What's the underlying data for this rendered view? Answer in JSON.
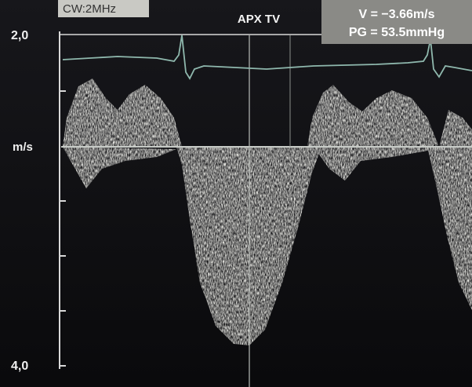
{
  "header": {
    "mode": "CW:2MHz",
    "title": "APX TV",
    "velocity": "V = −3.66m/s",
    "gradient": "PG = 53.5mmHg"
  },
  "scale": {
    "top": "2,0",
    "unit": "m/s",
    "bottom": "4,0"
  }
}
